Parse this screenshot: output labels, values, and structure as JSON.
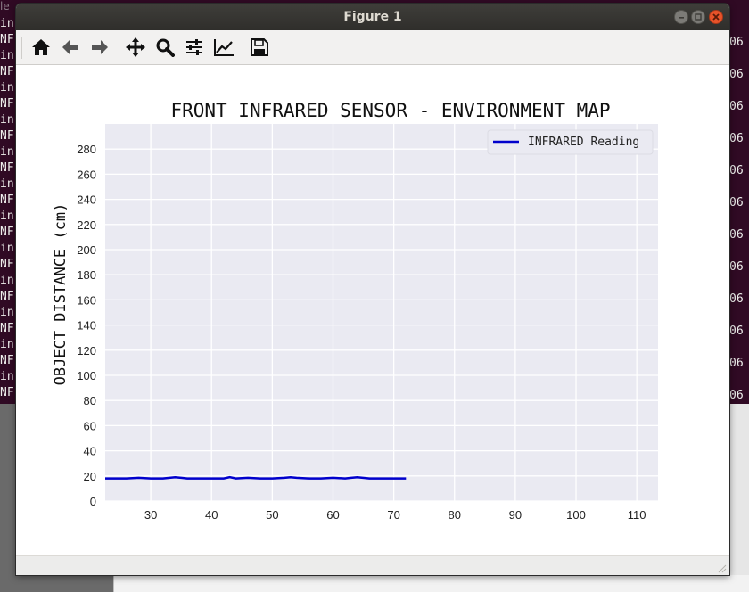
{
  "terminal": {
    "title_fragment": "le",
    "left_lines": [
      "in",
      "NF",
      "in",
      "NF",
      "in",
      "NF",
      "in",
      "NF",
      "in",
      "NF",
      "in",
      "NF",
      "in",
      "NF",
      "in",
      "NF",
      "in",
      "NF",
      "in",
      "NF",
      "in",
      "NF",
      "in",
      "NF"
    ],
    "right_lines": [
      "06",
      "06",
      "06",
      "06",
      "06",
      "06",
      "06",
      "06",
      "06",
      "06",
      "06",
      "06"
    ]
  },
  "window": {
    "title": "Figure 1"
  },
  "toolbar": {
    "buttons": [
      {
        "icon": "home-icon"
      },
      {
        "icon": "back-arrow-icon"
      },
      {
        "icon": "forward-arrow-icon"
      },
      {
        "icon": "pan-icon"
      },
      {
        "icon": "zoom-icon"
      },
      {
        "icon": "subplots-icon"
      },
      {
        "icon": "edit-axes-icon"
      },
      {
        "icon": "save-icon"
      }
    ]
  },
  "colors": {
    "plot_background": "#eaeaf2",
    "grid": "#ffffff",
    "line": "#0000cc"
  },
  "chart_data": {
    "type": "line",
    "title": "FRONT INFRARED SENSOR - ENVIRONMENT MAP",
    "xlabel": "",
    "ylabel": "OBJECT DISTANCE (cm)",
    "xlim": [
      22.5,
      113.5
    ],
    "ylim": [
      0,
      300
    ],
    "xticks": [
      30,
      40,
      50,
      60,
      70,
      80,
      90,
      100,
      110
    ],
    "yticks": [
      0,
      20,
      40,
      60,
      80,
      100,
      120,
      140,
      160,
      180,
      200,
      220,
      240,
      260,
      280
    ],
    "grid": true,
    "legend": "top-right",
    "series": [
      {
        "name": "INFRARED Reading",
        "x": [
          22.5,
          24,
          26,
          28,
          30,
          32,
          34,
          35,
          36,
          38,
          40,
          42,
          43,
          44,
          46,
          48,
          50,
          52,
          53,
          54,
          56,
          58,
          60,
          62,
          63,
          64,
          66,
          68,
          70,
          72
        ],
        "y": [
          18,
          18,
          18,
          18.5,
          18,
          18,
          19,
          18.5,
          18,
          18,
          18,
          18,
          19,
          18,
          18.5,
          18,
          18,
          18.5,
          19,
          18.5,
          18,
          18,
          18.5,
          18,
          18.5,
          19,
          18,
          18,
          18,
          18
        ]
      }
    ]
  }
}
